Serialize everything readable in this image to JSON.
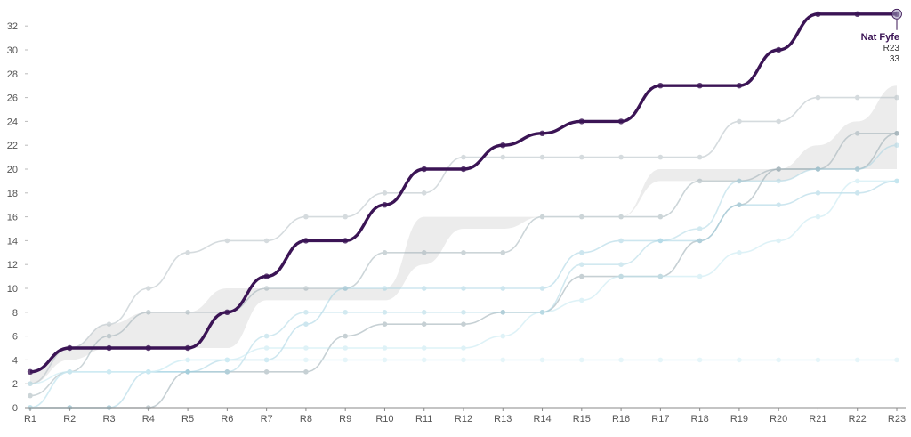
{
  "chart_data": {
    "type": "line",
    "title": "",
    "xlabel": "",
    "ylabel": "",
    "categories": [
      "R1",
      "R2",
      "R3",
      "R4",
      "R5",
      "R6",
      "R7",
      "R8",
      "R9",
      "R10",
      "R11",
      "R12",
      "R13",
      "R14",
      "R15",
      "R16",
      "R17",
      "R18",
      "R19",
      "R20",
      "R21",
      "R22",
      "R23"
    ],
    "ylim": [
      0,
      33
    ],
    "yticks": [
      0,
      2,
      4,
      6,
      8,
      10,
      12,
      14,
      16,
      18,
      20,
      22,
      24,
      26,
      28,
      30,
      32
    ],
    "band": {
      "upper": [
        3,
        5,
        7,
        8,
        8,
        10,
        10,
        10,
        10,
        10,
        16,
        16,
        16,
        16,
        16,
        16,
        20,
        20,
        20,
        20,
        22,
        24,
        27
      ],
      "lower": [
        2,
        4,
        5,
        5,
        5,
        5,
        9,
        9,
        9,
        9,
        12,
        15,
        15,
        16,
        16,
        16,
        19,
        19,
        19,
        19,
        20,
        20,
        20
      ]
    },
    "highlight": {
      "name": "Nat Fyfe",
      "color": "#3b1455",
      "values": [
        3,
        5,
        5,
        5,
        5,
        8,
        11,
        14,
        14,
        17,
        20,
        20,
        22,
        23,
        24,
        24,
        27,
        27,
        27,
        30,
        33,
        33,
        33
      ],
      "label_round": "R23",
      "label_value": "33"
    },
    "series": [
      {
        "values": [
          2,
          5,
          7,
          10,
          13,
          14,
          14,
          16,
          16,
          18,
          18,
          21,
          21,
          21,
          21,
          21,
          21,
          21,
          24,
          24,
          26,
          26,
          26
        ],
        "color": "#b3bec4",
        "opacity": 0.55
      },
      {
        "values": [
          0,
          0,
          0,
          0,
          3,
          3,
          3,
          3,
          6,
          7,
          7,
          7,
          8,
          8,
          11,
          11,
          11,
          14,
          17,
          20,
          20,
          20,
          23
        ],
        "color": "#8fa3ab",
        "opacity": 0.5
      },
      {
        "values": [
          1,
          3,
          6,
          8,
          8,
          8,
          10,
          10,
          10,
          13,
          13,
          13,
          13,
          16,
          16,
          16,
          16,
          19,
          19,
          20,
          20,
          23,
          23
        ],
        "color": "#8fa3ab",
        "opacity": 0.45
      },
      {
        "values": [
          0,
          0,
          0,
          3,
          3,
          4,
          4,
          7,
          10,
          10,
          10,
          10,
          10,
          10,
          13,
          14,
          14,
          14,
          17,
          17,
          18,
          18,
          19
        ],
        "color": "#9ccfe0",
        "opacity": 0.5
      },
      {
        "values": [
          0,
          3,
          3,
          3,
          3,
          3,
          6,
          8,
          8,
          8,
          8,
          8,
          8,
          8,
          12,
          12,
          14,
          15,
          19,
          19,
          20,
          20,
          22
        ],
        "color": "#9ccfe0",
        "opacity": 0.45
      },
      {
        "values": [
          2,
          3,
          3,
          3,
          4,
          4,
          5,
          5,
          5,
          5,
          5,
          5,
          6,
          8,
          9,
          11,
          11,
          11,
          13,
          14,
          16,
          19,
          19
        ],
        "color": "#bfe6f0",
        "opacity": 0.5
      },
      {
        "values": [
          0,
          3,
          3,
          3,
          4,
          4,
          4,
          4,
          4,
          4,
          4,
          4,
          4,
          4,
          4,
          4,
          4,
          4,
          4,
          4,
          4,
          4,
          4
        ],
        "color": "#d5eff6",
        "opacity": 0.6
      }
    ]
  }
}
